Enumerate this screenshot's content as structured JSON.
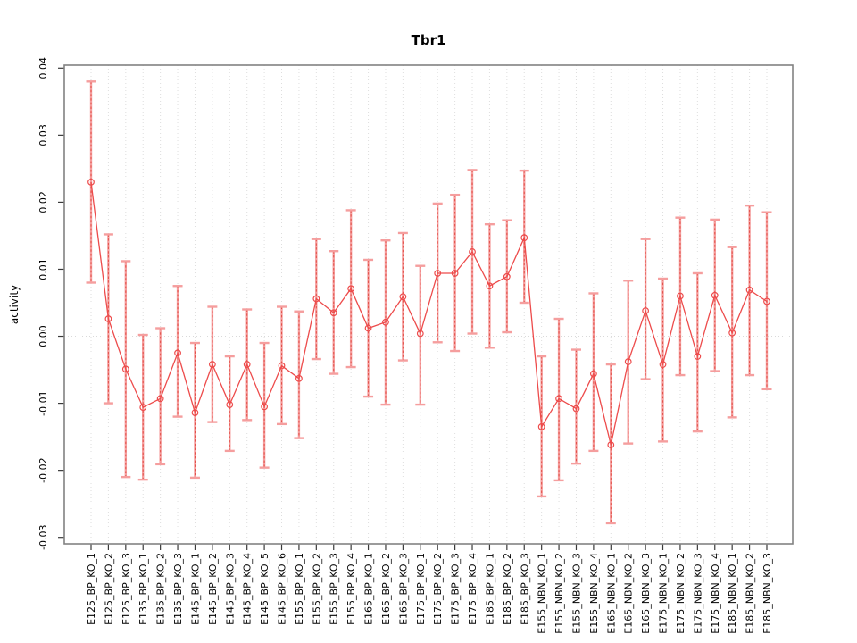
{
  "chart_data": {
    "type": "line",
    "subtype": "points-with-error-bars",
    "title": "Tbr1",
    "xlabel": "",
    "ylabel": "activity",
    "ylim": [
      -0.03,
      0.04
    ],
    "ytick_labels": [
      "0.04",
      "0.03",
      "0.02",
      "0.01",
      "0.00",
      "-0.01",
      "-0.02",
      "-0.03"
    ],
    "ytick_values": [
      0.04,
      0.03,
      0.02,
      0.01,
      0.0,
      -0.01,
      -0.02,
      -0.03
    ],
    "grid": "vertical dotted gridline at every category; dotted horizontal line at y=0",
    "legend": "none",
    "categories": [
      "E125_BP_KO_1",
      "E125_BP_KO_2",
      "E125_BP_KO_3",
      "E135_BP_KO_1",
      "E135_BP_KO_2",
      "E135_BP_KO_3",
      "E145_BP_KO_1",
      "E145_BP_KO_2",
      "E145_BP_KO_3",
      "E145_BP_KO_4",
      "E145_BP_KO_5",
      "E145_BP_KO_6",
      "E155_BP_KO_1",
      "E155_BP_KO_2",
      "E155_BP_KO_3",
      "E155_BP_KO_4",
      "E165_BP_KO_1",
      "E165_BP_KO_2",
      "E165_BP_KO_3",
      "E175_BP_KO_1",
      "E175_BP_KO_2",
      "E175_BP_KO_3",
      "E175_BP_KO_4",
      "E185_BP_KO_1",
      "E185_BP_KO_2",
      "E185_BP_KO_3",
      "E155_NBN_KO_1",
      "E155_NBN_KO_2",
      "E155_NBN_KO_3",
      "E155_NBN_KO_4",
      "E165_NBN_KO_1",
      "E165_NBN_KO_2",
      "E165_NBN_KO_3",
      "E175_NBN_KO_1",
      "E175_NBN_KO_2",
      "E175_NBN_KO_3",
      "E175_NBN_KO_4",
      "E185_NBN_KO_1",
      "E185_NBN_KO_2",
      "E185_NBN_KO_3"
    ],
    "series": [
      {
        "name": "activity",
        "values": [
          0.023,
          0.0026,
          -0.0049,
          -0.0106,
          -0.0093,
          -0.0025,
          -0.0114,
          -0.0042,
          -0.0102,
          -0.0042,
          -0.0105,
          -0.0044,
          -0.0063,
          0.0056,
          0.0035,
          0.0071,
          0.0012,
          0.0021,
          0.0059,
          0.0004,
          0.0094,
          0.0094,
          0.0126,
          0.0075,
          0.0089,
          0.0147,
          -0.0135,
          -0.0093,
          -0.0108,
          -0.0056,
          -0.0162,
          -0.0038,
          0.0038,
          -0.0042,
          0.006,
          -0.003,
          0.0061,
          0.0005,
          0.0069,
          0.0052
        ],
        "lower": [
          0.008,
          -0.01,
          -0.021,
          -0.0214,
          -0.0191,
          -0.012,
          -0.0211,
          -0.0128,
          -0.0171,
          -0.0125,
          -0.0196,
          -0.0131,
          -0.0152,
          -0.0034,
          -0.0056,
          -0.0046,
          -0.009,
          -0.0102,
          -0.0036,
          -0.0102,
          -0.0009,
          -0.0022,
          0.0004,
          -0.0017,
          0.0006,
          0.005,
          -0.0239,
          -0.0215,
          -0.019,
          -0.0171,
          -0.0279,
          -0.016,
          -0.0064,
          -0.0157,
          -0.0058,
          -0.0142,
          -0.0052,
          -0.0121,
          -0.0058,
          -0.0079
        ],
        "upper": [
          0.038,
          0.0152,
          0.0112,
          0.0002,
          0.0012,
          0.0075,
          -0.001,
          0.0044,
          -0.003,
          0.004,
          -0.001,
          0.0044,
          0.0037,
          0.0145,
          0.0127,
          0.0188,
          0.0114,
          0.0143,
          0.0154,
          0.0105,
          0.0198,
          0.0211,
          0.0248,
          0.0167,
          0.0173,
          0.0247,
          -0.003,
          0.0026,
          -0.002,
          0.0064,
          -0.0042,
          0.0083,
          0.0145,
          0.0086,
          0.0177,
          0.0094,
          0.0174,
          0.0133,
          0.0195,
          0.0185
        ]
      }
    ],
    "colors": {
      "line": "#ed4b4b",
      "marker": "#ed4b4b",
      "error_bar": "#f59e9e",
      "error_bar_dash": "#e25048",
      "gridline": "#dedede",
      "zero_line": "#d9d9d9",
      "frame": "#828282",
      "tick": "#3a3a3a",
      "text": "#000000"
    }
  }
}
